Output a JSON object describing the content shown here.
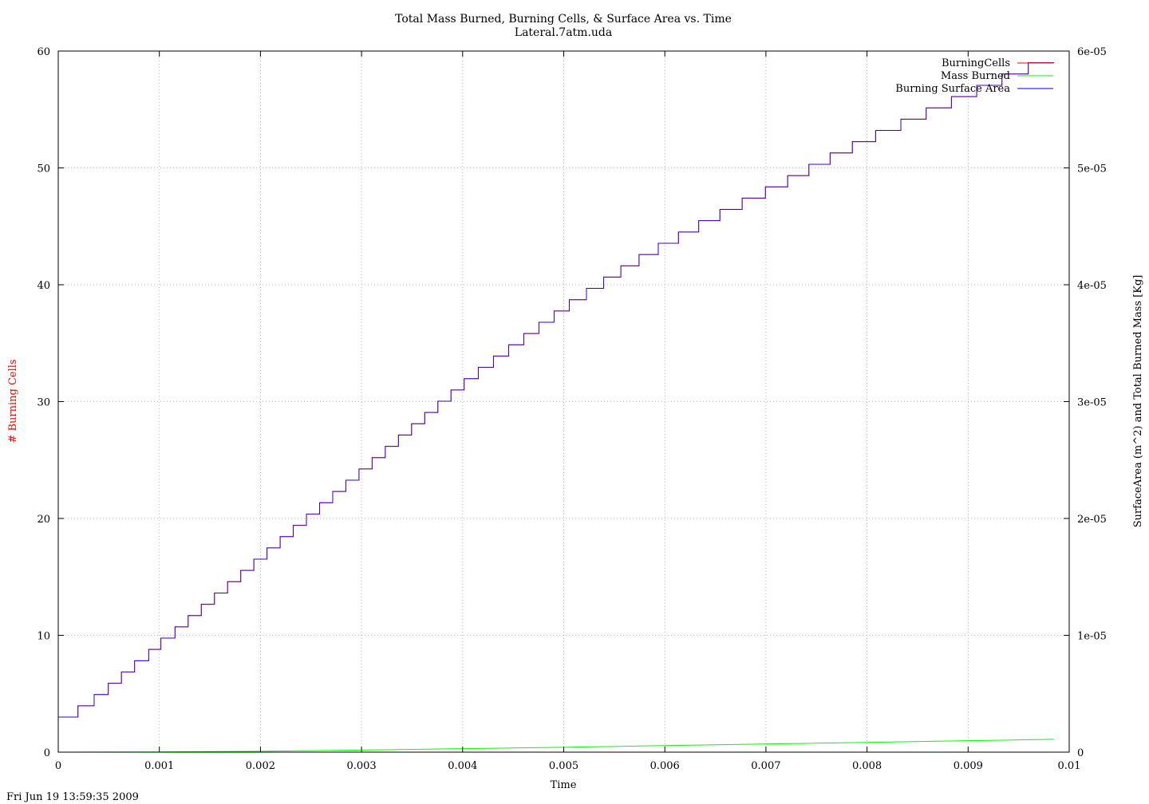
{
  "chart_data": {
    "type": "line",
    "title": "Total Mass Burned, Burning Cells, & Surface Area vs. Time",
    "subtitle": "Lateral.7atm.uda",
    "xlabel": "Time",
    "ylabel_left": "# Burning Cells",
    "ylabel_right": "SurfaceArea (m^2) and Total Burned Mass [Kg]",
    "timestamp": "Fri Jun 19 13:59:35 2009",
    "xlim": [
      0,
      0.01
    ],
    "ylim_left": [
      0,
      60
    ],
    "ylim_right": [
      0,
      6e-05
    ],
    "x_ticks": [
      "0",
      "0.001",
      "0.002",
      "0.003",
      "0.004",
      "0.005",
      "0.006",
      "0.007",
      "0.008",
      "0.009",
      "0.01"
    ],
    "y_left_ticks": [
      "0",
      "10",
      "20",
      "30",
      "40",
      "50",
      "60"
    ],
    "y_right_ticks": [
      "0",
      "1e-05",
      "2e-05",
      "3e-05",
      "4e-05",
      "5e-05",
      "6e-05"
    ],
    "grid": true,
    "legend_position": "top-right",
    "series": [
      {
        "name": "BurningCells",
        "axis": "left",
        "color": "#ff0000",
        "style": "steps",
        "start_value": 3,
        "step_times": [
          0.000195,
          0.000355,
          0.000495,
          0.000625,
          0.000755,
          0.000895,
          0.001015,
          0.001155,
          0.001285,
          0.001415,
          0.001545,
          0.001675,
          0.001805,
          0.001935,
          0.002065,
          0.002195,
          0.002325,
          0.002455,
          0.002585,
          0.002715,
          0.002845,
          0.002975,
          0.003105,
          0.003235,
          0.003365,
          0.003495,
          0.003625,
          0.003755,
          0.003885,
          0.004015,
          0.004155,
          0.004305,
          0.004455,
          0.004605,
          0.004755,
          0.004905,
          0.005055,
          0.005225,
          0.005395,
          0.005565,
          0.005745,
          0.005935,
          0.006135,
          0.006335,
          0.006545,
          0.006765,
          0.006995,
          0.007215,
          0.007425,
          0.007635,
          0.007855,
          0.008085,
          0.008335,
          0.008585,
          0.008835,
          0.009085,
          0.009335,
          0.009595
        ],
        "end_time": 0.00985,
        "end_value": 59
      },
      {
        "name": "Mass Burned",
        "axis": "right",
        "color": "#00ff00",
        "style": "line",
        "x": [
          0,
          0.001,
          0.002,
          0.003,
          0.004,
          0.005,
          0.006,
          0.007,
          0.008,
          0.009,
          0.00985
        ],
        "values": [
          0,
          2e-08,
          8e-08,
          1.8e-07,
          3e-07,
          4.2e-07,
          5.6e-07,
          7e-07,
          8.4e-07,
          9.8e-07,
          1.1e-06
        ]
      },
      {
        "name": "Burning Surface Area",
        "axis": "right",
        "color": "#0000ff",
        "style": "steps",
        "start_value": 3e-06,
        "step_times": [
          0.000195,
          0.000355,
          0.000495,
          0.000625,
          0.000755,
          0.000895,
          0.001015,
          0.001155,
          0.001285,
          0.001415,
          0.001545,
          0.001675,
          0.001805,
          0.001935,
          0.002065,
          0.002195,
          0.002325,
          0.002455,
          0.002585,
          0.002715,
          0.002845,
          0.002975,
          0.003105,
          0.003235,
          0.003365,
          0.003495,
          0.003625,
          0.003755,
          0.003885,
          0.004015,
          0.004155,
          0.004305,
          0.004455,
          0.004605,
          0.004755,
          0.004905,
          0.005055,
          0.005225,
          0.005395,
          0.005565,
          0.005745,
          0.005935,
          0.006135,
          0.006335,
          0.006545,
          0.006765,
          0.006995,
          0.007215,
          0.007425,
          0.007635,
          0.007855,
          0.008085,
          0.008335,
          0.008585,
          0.008835,
          0.009085,
          0.009335,
          0.009595
        ],
        "end_time": 0.00985,
        "end_value": 5.9e-05
      }
    ]
  }
}
